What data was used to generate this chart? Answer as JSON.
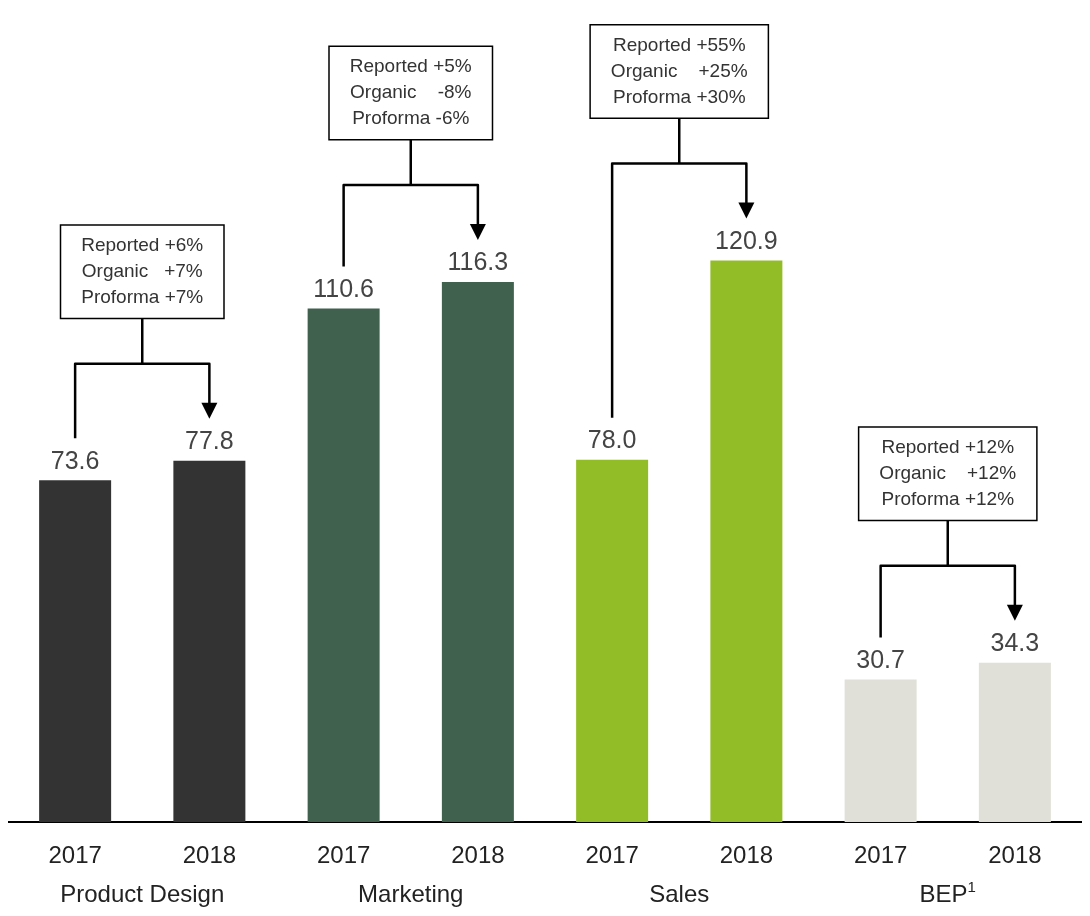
{
  "chart_data": {
    "type": "bar",
    "categories": [
      "2017",
      "2018",
      "2017",
      "2018",
      "2017",
      "2018",
      "2017",
      "2018"
    ],
    "values": [
      73.6,
      77.8,
      110.6,
      116.3,
      78.0,
      120.9,
      30.7,
      34.3
    ],
    "value_labels": [
      "73.6",
      "77.8",
      "110.6",
      "116.3",
      "78.0",
      "120.9",
      "30.7",
      "34.3"
    ],
    "colors": [
      "#333333",
      "#333333",
      "#41614f",
      "#41614f",
      "#93bd26",
      "#93bd26",
      "#e0e0d8",
      "#e0e0d8"
    ],
    "annotations": [
      "Reported +6%\nOrganic   +7%\nProforma +7%",
      "Reported +5%\nOrganic    -8%\nProforma -6%",
      "Reported +55%\nOrganic    +25%\nProforma +30%",
      "Reported +12%\nOrganic    +12%\nProforma +12%",
      "Product Design",
      "Marketing",
      "Sales",
      "BEP$^{1}$"
    ]
  }
}
